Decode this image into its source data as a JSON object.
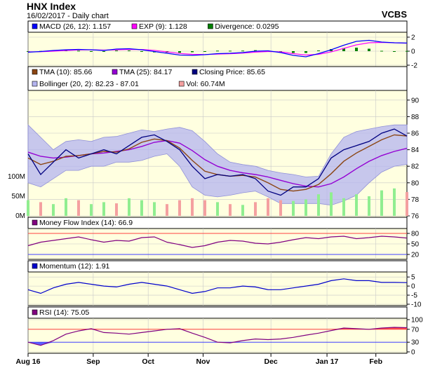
{
  "header": {
    "title": "HNX Index",
    "subtitle": "16/02/2017 - Daily chart",
    "vendor": "VCBS"
  },
  "colors": {
    "panel_bg": "#ffffe0",
    "grid": "#c8c8c8",
    "macd": "#0000ff",
    "exp": "#ff00ff",
    "divergence": "#008000",
    "tma10": "#8b4513",
    "tma25": "#9400d3",
    "price": "#000080",
    "bollinger_fill": "#b4b4f0",
    "volume_up": "#90ee90",
    "volume_down": "#f4a0a0",
    "mfi": "#800080",
    "momentum": "#0000cc",
    "rsi": "#800080",
    "rsi_over": "#ff5050",
    "rsi_under": "#6060ff",
    "ref_high": "#ff4040",
    "ref_low": "#4040ff"
  },
  "chart_data": [
    {
      "type": "line",
      "id": "macd",
      "legend": [
        {
          "label": "MACD (26, 12): 1.157",
          "color": "#0000ff"
        },
        {
          "label": "EXP (9): 1.128",
          "color": "#ff00ff"
        },
        {
          "label": "Divergence: 0.0295",
          "color": "#008000"
        }
      ],
      "ylim": [
        -2,
        2.5
      ],
      "yticks": [
        "2",
        "0",
        "-2"
      ],
      "series": [
        {
          "name": "MACD",
          "values": [
            -0.15,
            -0.05,
            0.1,
            0.2,
            0.25,
            0.2,
            0.1,
            0.3,
            0.35,
            0.2,
            -0.05,
            -0.3,
            -0.55,
            -0.6,
            -0.5,
            -0.35,
            -0.3,
            -0.2,
            0.0,
            0.05,
            -0.2,
            -0.6,
            -0.8,
            -0.35,
            0.2,
            0.85,
            1.4,
            1.55,
            1.3,
            1.2,
            1.16
          ]
        },
        {
          "name": "EXP",
          "values": [
            -0.1,
            -0.08,
            0.0,
            0.1,
            0.18,
            0.2,
            0.15,
            0.2,
            0.25,
            0.24,
            0.12,
            -0.1,
            -0.32,
            -0.45,
            -0.48,
            -0.42,
            -0.36,
            -0.28,
            -0.14,
            -0.05,
            -0.1,
            -0.35,
            -0.55,
            -0.45,
            -0.1,
            0.4,
            0.9,
            1.2,
            1.25,
            1.2,
            1.13
          ]
        },
        {
          "name": "Divergence",
          "values": [
            -0.05,
            0.03,
            0.1,
            0.1,
            0.07,
            0.0,
            -0.05,
            0.1,
            0.1,
            -0.04,
            -0.17,
            -0.2,
            -0.23,
            -0.15,
            -0.02,
            0.07,
            0.06,
            0.08,
            0.14,
            0.1,
            -0.1,
            -0.25,
            -0.25,
            0.1,
            0.3,
            0.45,
            0.5,
            0.35,
            0.05,
            0.0,
            0.03
          ]
        }
      ]
    },
    {
      "type": "line",
      "id": "price",
      "legend": [
        {
          "label": "TMA (10): 85.66",
          "color": "#8b4513"
        },
        {
          "label": "TMA (25): 84.17",
          "color": "#9400d3"
        },
        {
          "label": "Closing Price: 85.65",
          "color": "#000080"
        },
        {
          "label": "Bollinger (20, 2): 82.23 - 87.01",
          "color": "#b4b4f0"
        },
        {
          "label": "Vol: 60.74M",
          "color": "#f4a0a0"
        }
      ],
      "ylim": [
        76,
        91
      ],
      "yticks": [
        "90",
        "88",
        "86",
        "84",
        "82",
        "80",
        "78",
        "76"
      ],
      "volume_ticks": [
        "100M",
        "50M",
        "0M"
      ],
      "series": [
        {
          "name": "Closing Price",
          "values": [
            83.5,
            81,
            82.5,
            84,
            83,
            83.5,
            84,
            83.5,
            84.5,
            85.5,
            85.8,
            85,
            84,
            82,
            80.5,
            81,
            80.8,
            81,
            80.5,
            79,
            78.5,
            79.5,
            79.5,
            80.5,
            83,
            84,
            84.5,
            85,
            86,
            86.5,
            85.65
          ]
        },
        {
          "name": "TMA (10)",
          "values": [
            83,
            82.2,
            82.6,
            83.2,
            83.3,
            83.5,
            83.8,
            83.7,
            84.1,
            84.9,
            85.3,
            85.1,
            84.2,
            82.7,
            81.4,
            81,
            80.8,
            80.9,
            80.7,
            80,
            79.2,
            79,
            79.2,
            79.8,
            81.1,
            82.6,
            83.6,
            84.4,
            85.2,
            85.8,
            85.66
          ]
        },
        {
          "name": "TMA (25)",
          "values": [
            83.7,
            83.2,
            83,
            83.1,
            83.3,
            83.5,
            83.6,
            83.8,
            84,
            84.4,
            84.9,
            85.1,
            84.8,
            83.9,
            82.8,
            82,
            81.5,
            81.2,
            81,
            80.7,
            80.3,
            79.9,
            79.6,
            79.5,
            79.9,
            80.7,
            81.7,
            82.6,
            83.3,
            83.8,
            84.17
          ]
        },
        {
          "name": "Bollinger Upper",
          "values": [
            87,
            85.5,
            84,
            85,
            85.2,
            85,
            85.5,
            85.6,
            86,
            86.4,
            86.2,
            86.5,
            86.7,
            86.3,
            85,
            83.5,
            82.5,
            82.2,
            82,
            81.5,
            81.2,
            81,
            80.7,
            80.8,
            83.5,
            85.5,
            86.2,
            86.5,
            86.8,
            87,
            87.01
          ]
        },
        {
          "name": "Bollinger Lower",
          "values": [
            80,
            79.5,
            80.5,
            81.5,
            81.5,
            82,
            82,
            82.5,
            82.5,
            82.7,
            83.2,
            83.5,
            82,
            79.5,
            78.5,
            78.3,
            78.5,
            78.8,
            79,
            78.3,
            77.5,
            77.5,
            77.5,
            77.5,
            77.3,
            77.8,
            78.5,
            80,
            81.3,
            82,
            82.23
          ]
        },
        {
          "name": "Volume",
          "values": [
            40,
            35,
            30,
            45,
            40,
            30,
            35,
            32,
            45,
            40,
            35,
            30,
            40,
            45,
            40,
            35,
            30,
            28,
            35,
            45,
            40,
            38,
            42,
            55,
            60,
            45,
            55,
            50,
            65,
            70,
            60.74
          ]
        }
      ]
    },
    {
      "type": "line",
      "id": "mfi",
      "legend": [
        {
          "label": "Money Flow Index (14): 66.9",
          "color": "#800080"
        }
      ],
      "ylim": [
        10,
        90
      ],
      "yticks": [
        "80",
        "50",
        "20"
      ],
      "series": [
        {
          "name": "Money Flow Index",
          "values": [
            45,
            55,
            60,
            65,
            70,
            62,
            55,
            60,
            58,
            68,
            70,
            55,
            48,
            40,
            45,
            55,
            60,
            58,
            52,
            50,
            55,
            62,
            68,
            65,
            70,
            72,
            65,
            68,
            72,
            70,
            66.9
          ]
        }
      ]
    },
    {
      "type": "line",
      "id": "momentum",
      "legend": [
        {
          "label": "Momentum (12): 1.91",
          "color": "#0000cc"
        }
      ],
      "ylim": [
        -10,
        7
      ],
      "yticks": [
        "5",
        "0",
        "-5",
        "-10"
      ],
      "series": [
        {
          "name": "Momentum",
          "values": [
            -2,
            -4,
            -1,
            1,
            2,
            1,
            0,
            -0.5,
            1,
            2,
            1,
            0,
            -2,
            -4,
            -3,
            -1,
            -1,
            0,
            -0.5,
            -2,
            -2,
            -1,
            0,
            1,
            3,
            4,
            3,
            3,
            2,
            2,
            1.91
          ]
        }
      ]
    },
    {
      "type": "line",
      "id": "rsi",
      "legend": [
        {
          "label": "RSI (14): 75.05",
          "color": "#800080"
        }
      ],
      "ylim": [
        0,
        100
      ],
      "yticks": [
        "100",
        "70",
        "30",
        "0"
      ],
      "series": [
        {
          "name": "RSI",
          "values": [
            30,
            20,
            35,
            55,
            65,
            72,
            60,
            58,
            55,
            60,
            65,
            70,
            72,
            58,
            45,
            30,
            28,
            35,
            40,
            38,
            40,
            45,
            52,
            58,
            66,
            74,
            72,
            70,
            74,
            76,
            75.05
          ]
        }
      ]
    }
  ],
  "x_axis": {
    "labels": [
      "Aug 16",
      "Sep",
      "Oct",
      "Nov",
      "Dec",
      "Jan 17",
      "Feb"
    ],
    "positions": [
      0,
      0.172,
      0.317,
      0.462,
      0.641,
      0.789,
      0.918
    ]
  }
}
